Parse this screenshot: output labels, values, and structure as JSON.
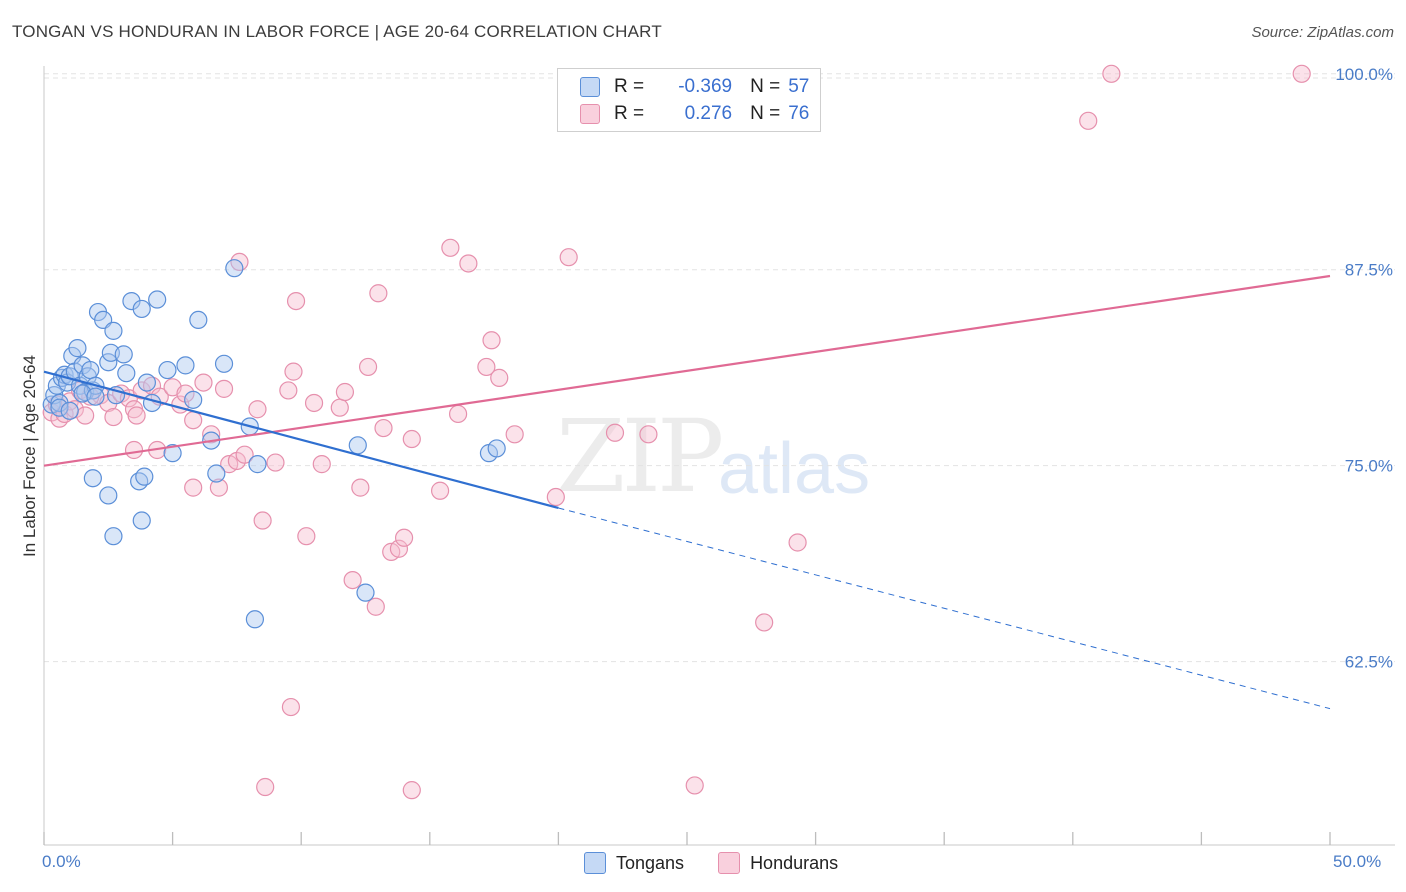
{
  "title": "TONGAN VS HONDURAN IN LABOR FORCE | AGE 20-64 CORRELATION CHART",
  "source": "Source: ZipAtlas.com",
  "watermark": {
    "zip": "ZIP",
    "atlas": "atlas"
  },
  "colors": {
    "tongan_fill": "#aac8f0",
    "tongan_stroke": "#5b8fd8",
    "tongan_line": "#2f6fd0",
    "honduran_fill": "#f6bfd0",
    "honduran_stroke": "#e690ad",
    "honduran_line": "#e06a94",
    "tick_label": "#4a7cc7",
    "grid": "#e3e3e3"
  },
  "legend": {
    "r_label": "R =",
    "n_label": "N =",
    "tongan_r": "-0.369",
    "tongan_n": "57",
    "honduran_r": "0.276",
    "honduran_n": "76"
  },
  "bottom_legend": {
    "tongans": "Tongans",
    "hondurans": "Hondurans"
  },
  "chart_data": {
    "type": "scatter",
    "title": "TONGAN VS HONDURAN IN LABOR FORCE | AGE 20-64 CORRELATION CHART",
    "xlabel": "",
    "ylabel": "In Labor Force | Age 20-64",
    "xlim": [
      0,
      50
    ],
    "ylim": [
      50.8,
      101.2
    ],
    "x_tick_labels": [
      "0.0%",
      "50.0%"
    ],
    "y_ticks": [
      62.5,
      75.0,
      87.5,
      100.0
    ],
    "y_tick_labels": [
      "62.5%",
      "75.0%",
      "87.5%",
      "100.0%"
    ],
    "grid": "horizontal dashed",
    "legend_position": "top-center",
    "series": [
      {
        "name": "Tongans",
        "points": [
          [
            0.3,
            78.9
          ],
          [
            0.4,
            79.5
          ],
          [
            0.5,
            80.1
          ],
          [
            0.6,
            79.0
          ],
          [
            0.7,
            80.6
          ],
          [
            0.8,
            80.8
          ],
          [
            0.9,
            80.3
          ],
          [
            1.0,
            80.7
          ],
          [
            1.1,
            82.0
          ],
          [
            1.2,
            81.0
          ],
          [
            1.3,
            82.5
          ],
          [
            1.4,
            80.1
          ],
          [
            1.5,
            81.4
          ],
          [
            1.6,
            79.7
          ],
          [
            1.7,
            80.7
          ],
          [
            1.8,
            81.1
          ],
          [
            1.9,
            79.8
          ],
          [
            2.0,
            80.1
          ],
          [
            2.1,
            84.8
          ],
          [
            2.3,
            84.3
          ],
          [
            2.5,
            81.6
          ],
          [
            2.6,
            82.2
          ],
          [
            2.7,
            83.6
          ],
          [
            2.8,
            79.5
          ],
          [
            3.1,
            82.1
          ],
          [
            3.2,
            80.9
          ],
          [
            3.4,
            85.5
          ],
          [
            3.8,
            85.0
          ],
          [
            4.0,
            80.3
          ],
          [
            4.2,
            79.0
          ],
          [
            4.4,
            85.6
          ],
          [
            4.8,
            81.1
          ],
          [
            5.5,
            81.4
          ],
          [
            5.8,
            79.2
          ],
          [
            6.0,
            84.3
          ],
          [
            6.5,
            76.6
          ],
          [
            6.7,
            74.5
          ],
          [
            7.0,
            81.5
          ],
          [
            7.4,
            87.6
          ],
          [
            8.0,
            77.5
          ],
          [
            8.3,
            75.1
          ],
          [
            1.9,
            74.2
          ],
          [
            2.5,
            73.1
          ],
          [
            3.7,
            74.0
          ],
          [
            3.9,
            74.3
          ],
          [
            2.7,
            70.5
          ],
          [
            3.8,
            71.5
          ],
          [
            5.0,
            75.8
          ],
          [
            8.2,
            65.2
          ],
          [
            12.2,
            76.3
          ],
          [
            12.5,
            66.9
          ],
          [
            17.3,
            75.8
          ],
          [
            17.6,
            76.1
          ],
          [
            0.6,
            78.7
          ],
          [
            1.0,
            78.5
          ],
          [
            1.5,
            79.6
          ],
          [
            2.0,
            79.4
          ]
        ],
        "trend": {
          "x": [
            0,
            20
          ],
          "y": [
            81.0,
            72.3
          ]
        },
        "trend_extrapolated": {
          "x": [
            20,
            50
          ],
          "y": [
            72.3,
            59.5
          ]
        }
      },
      {
        "name": "Hondurans",
        "points": [
          [
            0.3,
            78.4
          ],
          [
            0.5,
            78.9
          ],
          [
            0.6,
            78.0
          ],
          [
            0.8,
            78.3
          ],
          [
            1.0,
            79.1
          ],
          [
            1.2,
            78.6
          ],
          [
            1.4,
            79.8
          ],
          [
            1.6,
            78.2
          ],
          [
            2.2,
            79.5
          ],
          [
            2.5,
            79.0
          ],
          [
            2.7,
            78.1
          ],
          [
            3.0,
            79.6
          ],
          [
            3.3,
            79.3
          ],
          [
            3.5,
            78.6
          ],
          [
            3.6,
            78.2
          ],
          [
            3.8,
            79.8
          ],
          [
            4.2,
            80.1
          ],
          [
            4.5,
            79.4
          ],
          [
            5.0,
            80.0
          ],
          [
            5.3,
            78.9
          ],
          [
            5.5,
            79.6
          ],
          [
            5.8,
            77.9
          ],
          [
            6.2,
            80.3
          ],
          [
            6.5,
            77.0
          ],
          [
            7.0,
            79.9
          ],
          [
            7.2,
            75.1
          ],
          [
            7.5,
            75.3
          ],
          [
            7.8,
            75.7
          ],
          [
            8.3,
            78.6
          ],
          [
            8.5,
            71.5
          ],
          [
            9.0,
            75.2
          ],
          [
            9.5,
            79.8
          ],
          [
            9.7,
            81.0
          ],
          [
            9.8,
            85.5
          ],
          [
            10.2,
            70.5
          ],
          [
            10.5,
            79.0
          ],
          [
            10.8,
            75.1
          ],
          [
            11.5,
            78.7
          ],
          [
            11.7,
            79.7
          ],
          [
            12.0,
            67.7
          ],
          [
            12.3,
            73.6
          ],
          [
            12.6,
            81.3
          ],
          [
            12.9,
            66.0
          ],
          [
            13.2,
            77.4
          ],
          [
            13.5,
            69.5
          ],
          [
            13.8,
            69.7
          ],
          [
            14.0,
            70.4
          ],
          [
            14.3,
            76.7
          ],
          [
            15.4,
            73.4
          ],
          [
            15.8,
            88.9
          ],
          [
            16.1,
            78.3
          ],
          [
            16.5,
            87.9
          ],
          [
            17.2,
            81.3
          ],
          [
            17.4,
            83.0
          ],
          [
            17.7,
            80.6
          ],
          [
            18.3,
            77.0
          ],
          [
            19.9,
            73.0
          ],
          [
            20.4,
            88.3
          ],
          [
            22.2,
            77.1
          ],
          [
            23.5,
            77.0
          ],
          [
            28.0,
            65.0
          ],
          [
            29.3,
            70.1
          ],
          [
            40.6,
            97.0
          ],
          [
            41.5,
            100.0
          ],
          [
            48.9,
            100.0
          ],
          [
            7.6,
            88.0
          ],
          [
            13.0,
            86.0
          ],
          [
            6.8,
            73.6
          ],
          [
            5.8,
            73.6
          ],
          [
            9.6,
            59.6
          ],
          [
            8.6,
            54.5
          ],
          [
            14.3,
            54.3
          ],
          [
            25.3,
            54.6
          ],
          [
            3.5,
            76.0
          ],
          [
            4.4,
            76.0
          ],
          [
            1.8,
            79.4
          ]
        ],
        "trend": {
          "x": [
            0,
            50
          ],
          "y": [
            75.0,
            87.1
          ]
        }
      }
    ]
  }
}
